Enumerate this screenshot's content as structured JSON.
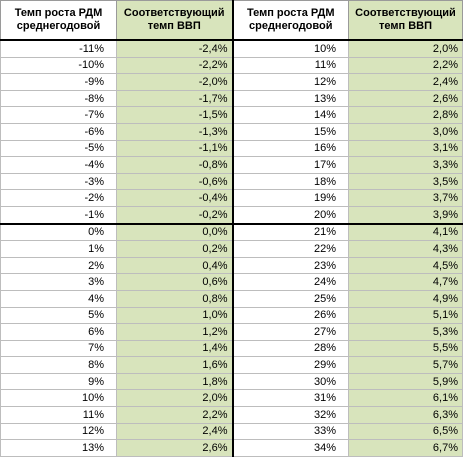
{
  "headers": {
    "growth_line1": "Темп роста РДМ",
    "growth_line2": "среднегодовой",
    "gdp_line1": "Соответствующий",
    "gdp_line2": "темп ВВП"
  },
  "left_rows": [
    {
      "growth": "-11%",
      "gdp": "-2,4%"
    },
    {
      "growth": "-10%",
      "gdp": "-2,2%"
    },
    {
      "growth": "-9%",
      "gdp": "-2,0%"
    },
    {
      "growth": "-8%",
      "gdp": "-1,7%"
    },
    {
      "growth": "-7%",
      "gdp": "-1,5%"
    },
    {
      "growth": "-6%",
      "gdp": "-1,3%"
    },
    {
      "growth": "-5%",
      "gdp": "-1,1%"
    },
    {
      "growth": "-4%",
      "gdp": "-0,8%"
    },
    {
      "growth": "-3%",
      "gdp": "-0,6%"
    },
    {
      "growth": "-2%",
      "gdp": "-0,4%"
    },
    {
      "growth": "-1%",
      "gdp": "-0,2%"
    },
    {
      "growth": "0%",
      "gdp": "0,0%"
    },
    {
      "growth": "1%",
      "gdp": "0,2%"
    },
    {
      "growth": "2%",
      "gdp": "0,4%"
    },
    {
      "growth": "3%",
      "gdp": "0,6%"
    },
    {
      "growth": "4%",
      "gdp": "0,8%"
    },
    {
      "growth": "5%",
      "gdp": "1,0%"
    },
    {
      "growth": "6%",
      "gdp": "1,2%"
    },
    {
      "growth": "7%",
      "gdp": "1,4%"
    },
    {
      "growth": "8%",
      "gdp": "1,6%"
    },
    {
      "growth": "9%",
      "gdp": "1,8%"
    },
    {
      "growth": "10%",
      "gdp": "2,0%"
    },
    {
      "growth": "11%",
      "gdp": "2,2%"
    },
    {
      "growth": "12%",
      "gdp": "2,4%"
    },
    {
      "growth": "13%",
      "gdp": "2,6%"
    }
  ],
  "right_rows": [
    {
      "growth": "10%",
      "gdp": "2,0%"
    },
    {
      "growth": "11%",
      "gdp": "2,2%"
    },
    {
      "growth": "12%",
      "gdp": "2,4%"
    },
    {
      "growth": "13%",
      "gdp": "2,6%"
    },
    {
      "growth": "14%",
      "gdp": "2,8%"
    },
    {
      "growth": "15%",
      "gdp": "3,0%"
    },
    {
      "growth": "16%",
      "gdp": "3,1%"
    },
    {
      "growth": "17%",
      "gdp": "3,3%"
    },
    {
      "growth": "18%",
      "gdp": "3,5%"
    },
    {
      "growth": "19%",
      "gdp": "3,7%"
    },
    {
      "growth": "20%",
      "gdp": "3,9%"
    },
    {
      "growth": "21%",
      "gdp": "4,1%"
    },
    {
      "growth": "22%",
      "gdp": "4,3%"
    },
    {
      "growth": "23%",
      "gdp": "4,5%"
    },
    {
      "growth": "24%",
      "gdp": "4,7%"
    },
    {
      "growth": "25%",
      "gdp": "4,9%"
    },
    {
      "growth": "26%",
      "gdp": "5,1%"
    },
    {
      "growth": "27%",
      "gdp": "5,3%"
    },
    {
      "growth": "28%",
      "gdp": "5,5%"
    },
    {
      "growth": "29%",
      "gdp": "5,7%"
    },
    {
      "growth": "30%",
      "gdp": "5,9%"
    },
    {
      "growth": "31%",
      "gdp": "6,1%"
    },
    {
      "growth": "32%",
      "gdp": "6,3%"
    },
    {
      "growth": "33%",
      "gdp": "6,5%"
    },
    {
      "growth": "34%",
      "gdp": "6,7%"
    }
  ],
  "colors": {
    "gdp_fill": "#d8e4bc",
    "separator": "#000000",
    "grid": "#bdbdbd"
  }
}
